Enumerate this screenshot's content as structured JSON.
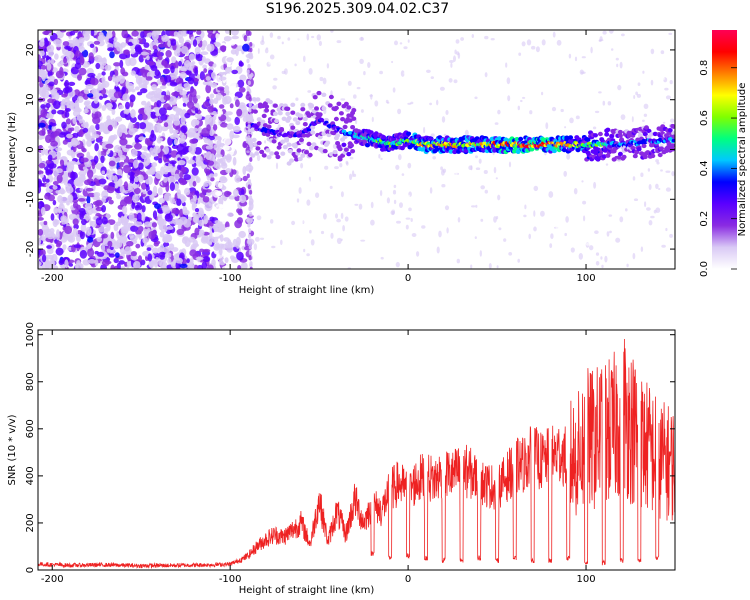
{
  "title": "S196.2025.309.04.02.C37",
  "chart_data": [
    {
      "type": "heatmap",
      "title": "S196.2025.309.04.02.C37",
      "xlabel": "Height of straight line (km)",
      "ylabel": "Frequency (Hz)",
      "xlim": [
        -208,
        150
      ],
      "ylim": [
        -24,
        24
      ],
      "x_ticks": [
        -200,
        -100,
        0,
        100
      ],
      "y_ticks": [
        20,
        10,
        0,
        -10,
        -20
      ],
      "colorbar": {
        "label": "Normalized spectral amplitude",
        "range": [
          0,
          0.95
        ],
        "ticks": [
          "0.0",
          "0.2",
          "0.4",
          "0.6",
          "0.8"
        ],
        "colors": [
          "#ffffff",
          "#d9c9f5",
          "#8a2be2",
          "#5a00ff",
          "#0000ff",
          "#00c8ff",
          "#00ff80",
          "#80ff00",
          "#ffff00",
          "#ff8000",
          "#ff0000",
          "#ff0055"
        ]
      },
      "ridge": {
        "description": "strong persistent signal near 0-2 Hz from about -20 km to 150 km",
        "x": [
          -90,
          -80,
          -70,
          -60,
          -50,
          -40,
          -30,
          -20,
          -10,
          0,
          10,
          20,
          40,
          60,
          80,
          100,
          120,
          150
        ],
        "freq": [
          5,
          4,
          3,
          3,
          6,
          4,
          3,
          2,
          1,
          2,
          1,
          1,
          1,
          1,
          1,
          1,
          1,
          2
        ],
        "amplitude": [
          0.3,
          0.35,
          0.3,
          0.3,
          0.3,
          0.35,
          0.45,
          0.55,
          0.6,
          0.55,
          0.75,
          0.7,
          0.7,
          0.8,
          0.85,
          0.6,
          0.4,
          0.4
        ]
      }
    },
    {
      "type": "line",
      "xlabel": "Height of straight line (km)",
      "ylabel": "SNR (10 * v/v)",
      "xlim": [
        -208,
        150
      ],
      "ylim": [
        0,
        1020
      ],
      "x_ticks": [
        -200,
        -100,
        0,
        100
      ],
      "y_ticks": [
        0,
        200,
        400,
        600,
        800,
        1000
      ],
      "color": "#ee2222",
      "x": [
        -208,
        -190,
        -170,
        -150,
        -130,
        -110,
        -100,
        -95,
        -90,
        -85,
        -80,
        -75,
        -70,
        -65,
        -60,
        -55,
        -50,
        -45,
        -40,
        -35,
        -30,
        -25,
        -20,
        -15,
        -10,
        -5,
        0,
        5,
        10,
        15,
        20,
        25,
        30,
        35,
        40,
        45,
        50,
        55,
        60,
        65,
        70,
        75,
        80,
        85,
        90,
        95,
        100,
        105,
        110,
        115,
        120,
        125,
        130,
        135,
        140,
        145,
        150
      ],
      "values": [
        25,
        20,
        22,
        18,
        20,
        22,
        25,
        40,
        60,
        100,
        130,
        150,
        140,
        170,
        200,
        110,
        300,
        120,
        250,
        150,
        300,
        200,
        280,
        250,
        340,
        370,
        330,
        380,
        400,
        380,
        420,
        400,
        430,
        410,
        380,
        360,
        350,
        390,
        440,
        450,
        490,
        460,
        480,
        500,
        470,
        480,
        560,
        550,
        600,
        580,
        700,
        620,
        550,
        520,
        480,
        460,
        450
      ],
      "dips": {
        "x": [
          -20,
          -10,
          0,
          10,
          20,
          30,
          40,
          50,
          60,
          70,
          80,
          90,
          100,
          110,
          120,
          130,
          140
        ],
        "values": [
          60,
          40,
          50,
          40,
          30,
          30,
          40,
          30,
          40,
          30,
          30,
          40,
          20,
          20,
          30,
          30,
          40
        ]
      }
    }
  ]
}
